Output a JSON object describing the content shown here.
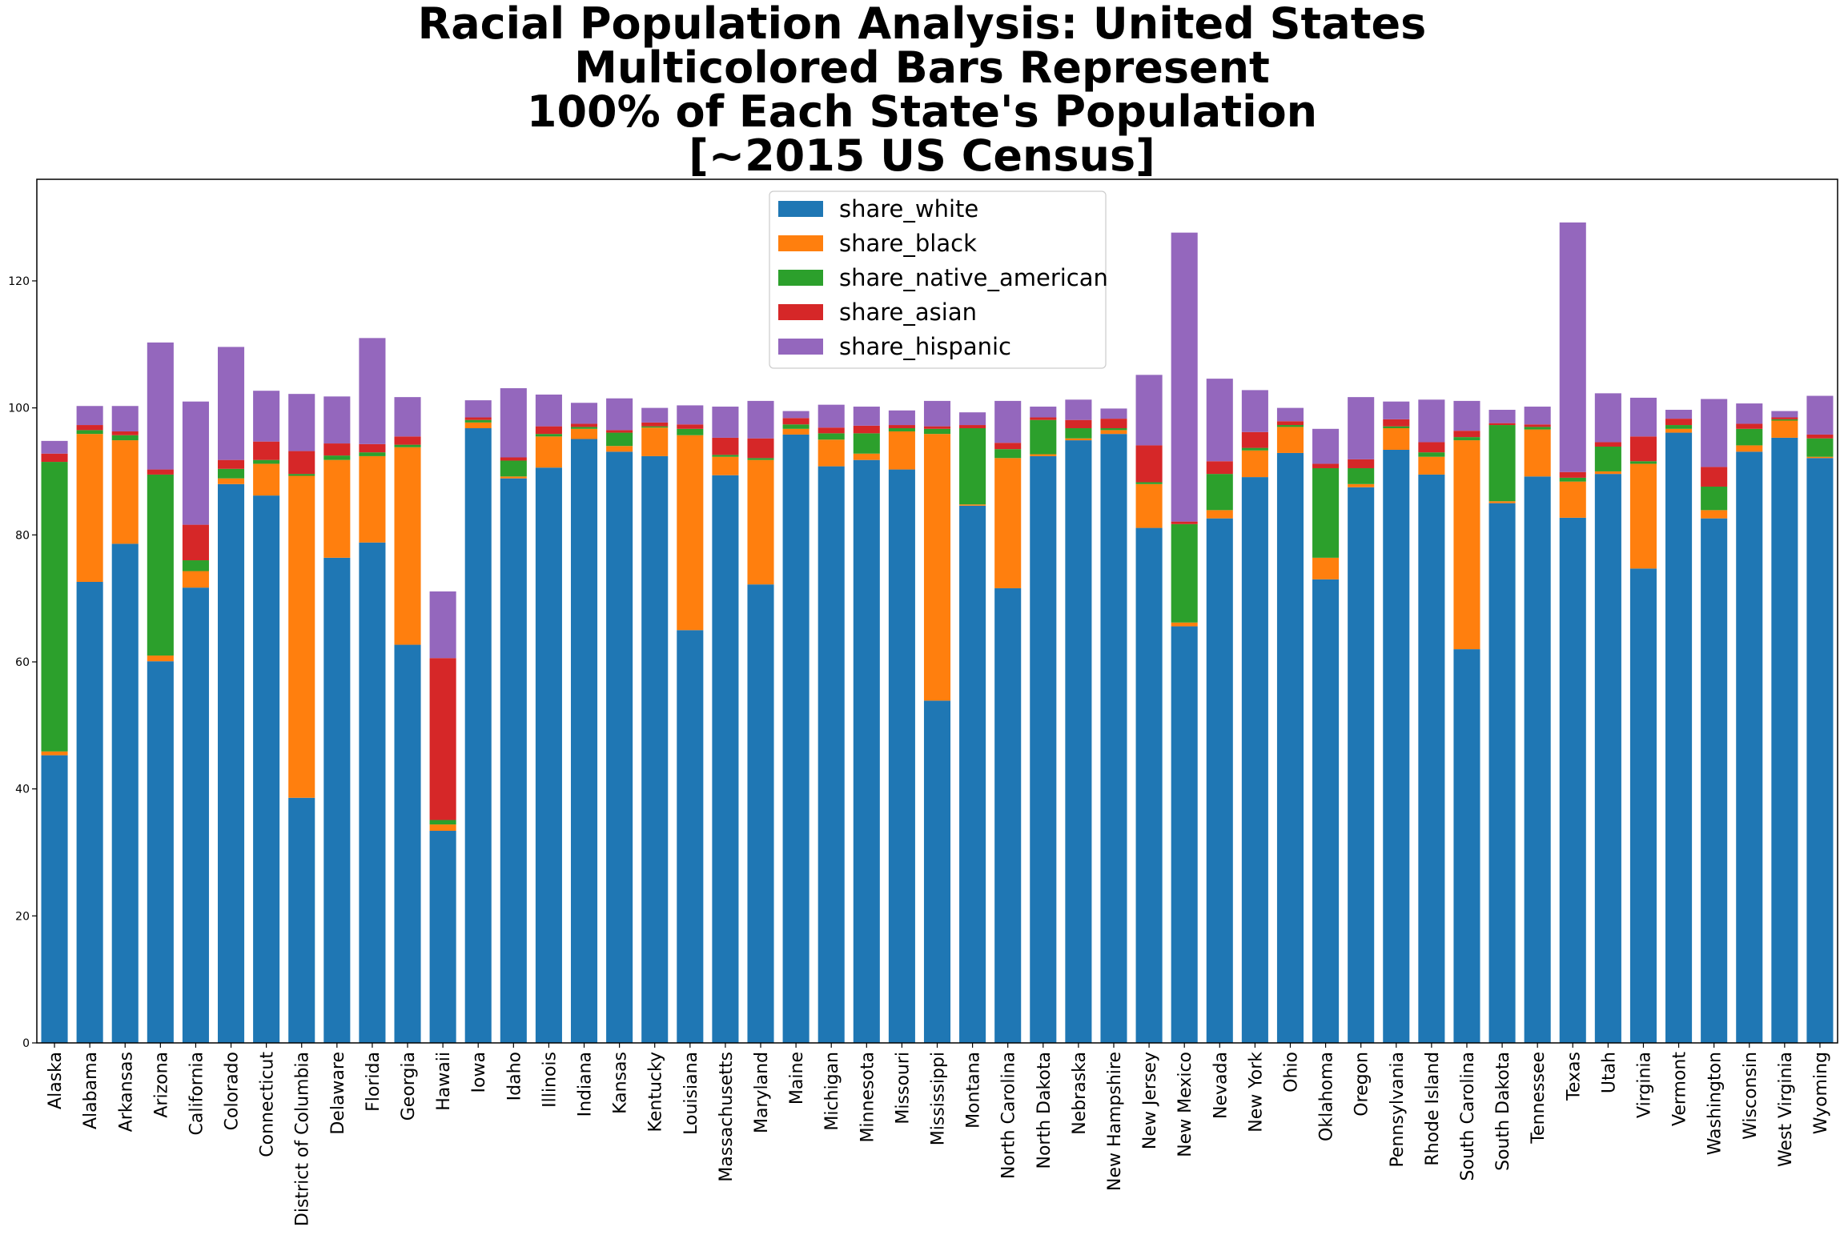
{
  "chart_data": {
    "type": "bar",
    "stacked": true,
    "title_lines": [
      "Racial Population Analysis: United States",
      "Multicolored Bars Represent",
      "100% of Each State's Population",
      "[~2015 US Census]"
    ],
    "xlabel": "",
    "ylabel": "",
    "ylim": [
      0,
      136
    ],
    "yticks": [
      0,
      20,
      40,
      60,
      80,
      100,
      120
    ],
    "grid": false,
    "legend_position": "top-center",
    "categories": [
      "Alaska",
      "Alabama",
      "Arkansas",
      "Arizona",
      "California",
      "Colorado",
      "Connecticut",
      "District of Columbia",
      "Delaware",
      "Florida",
      "Georgia",
      "Hawaii",
      "Iowa",
      "Idaho",
      "Illinois",
      "Indiana",
      "Kansas",
      "Kentucky",
      "Louisiana",
      "Massachusetts",
      "Maryland",
      "Maine",
      "Michigan",
      "Minnesota",
      "Missouri",
      "Mississippi",
      "Montana",
      "North Carolina",
      "North Dakota",
      "Nebraska",
      "New Hampshire",
      "New Jersey",
      "New Mexico",
      "Nevada",
      "New York",
      "Ohio",
      "Oklahoma",
      "Oregon",
      "Pennsylvania",
      "Rhode Island",
      "South Carolina",
      "South Dakota",
      "Tennessee",
      "Texas",
      "Utah",
      "Virginia",
      "Vermont",
      "Washington",
      "Wisconsin",
      "West Virginia",
      "Wyoming"
    ],
    "series": [
      {
        "name": "share_white",
        "color": "#1f77b4",
        "values": [
          45.3,
          72.6,
          78.6,
          60.1,
          71.7,
          88.0,
          86.2,
          38.6,
          76.4,
          78.8,
          62.7,
          33.4,
          96.8,
          88.9,
          90.6,
          95.1,
          93.1,
          92.4,
          65.0,
          89.4,
          72.2,
          95.8,
          90.8,
          91.8,
          90.3,
          53.9,
          84.6,
          71.6,
          92.4,
          94.9,
          95.9,
          81.1,
          65.6,
          82.6,
          89.1,
          92.9,
          73.0,
          87.5,
          93.4,
          89.5,
          62.0,
          85.0,
          89.2,
          82.7,
          89.6,
          74.7,
          96.1,
          82.6,
          93.1,
          95.3,
          92.1
        ]
      },
      {
        "name": "share_black",
        "color": "#ff7f0e",
        "values": [
          0.6,
          23.3,
          16.3,
          0.9,
          2.6,
          0.9,
          5.0,
          50.7,
          15.4,
          13.6,
          31.1,
          1.0,
          0.9,
          0.3,
          4.9,
          1.6,
          0.9,
          4.5,
          30.7,
          2.9,
          19.6,
          0.9,
          4.2,
          1.0,
          6.0,
          42.0,
          0.2,
          20.5,
          0.3,
          0.3,
          0.6,
          6.9,
          0.6,
          1.3,
          4.2,
          4.1,
          3.4,
          0.5,
          3.4,
          2.8,
          32.9,
          0.3,
          7.4,
          5.7,
          0.4,
          16.5,
          0.6,
          1.3,
          1.0,
          2.7,
          0.2
        ]
      },
      {
        "name": "share_native_american",
        "color": "#2ca02c",
        "values": [
          45.6,
          0.6,
          0.8,
          28.5,
          1.7,
          1.5,
          0.6,
          0.3,
          0.7,
          0.6,
          0.4,
          0.7,
          0.4,
          2.5,
          0.4,
          0.3,
          2.1,
          0.2,
          1.0,
          0.3,
          0.3,
          0.7,
          1.0,
          3.2,
          0.5,
          0.8,
          12.0,
          1.4,
          5.4,
          1.6,
          0.3,
          0.3,
          15.5,
          5.7,
          0.4,
          0.3,
          14.1,
          2.5,
          0.3,
          0.7,
          0.5,
          12.0,
          0.4,
          0.6,
          3.9,
          0.4,
          0.6,
          3.7,
          2.6,
          0.2,
          2.9
        ]
      },
      {
        "name": "share_asian",
        "color": "#d62728",
        "values": [
          1.3,
          0.8,
          0.6,
          0.8,
          5.6,
          1.4,
          2.9,
          3.6,
          1.9,
          1.3,
          1.3,
          25.5,
          0.4,
          0.5,
          1.2,
          0.5,
          0.4,
          0.6,
          0.7,
          2.7,
          3.1,
          1.0,
          0.9,
          1.2,
          0.5,
          0.4,
          0.5,
          1.0,
          0.4,
          1.3,
          1.5,
          5.8,
          0.4,
          2.0,
          2.5,
          0.6,
          0.7,
          1.4,
          1.1,
          1.6,
          1.0,
          0.3,
          0.4,
          0.9,
          0.7,
          3.9,
          1.0,
          3.1,
          0.8,
          0.3,
          0.6
        ]
      },
      {
        "name": "share_hispanic",
        "color": "#9467bd",
        "values": [
          2.0,
          3.0,
          4.0,
          20.0,
          19.4,
          17.8,
          8.0,
          9.0,
          7.4,
          16.7,
          6.2,
          10.5,
          2.7,
          10.9,
          5.0,
          3.3,
          5.0,
          2.3,
          3.0,
          4.9,
          5.9,
          1.1,
          3.6,
          3.0,
          2.3,
          4.0,
          2.0,
          6.6,
          1.7,
          3.2,
          1.6,
          11.1,
          45.5,
          13.0,
          6.6,
          2.1,
          5.5,
          9.8,
          2.8,
          6.7,
          4.7,
          2.1,
          2.8,
          39.3,
          7.7,
          6.1,
          1.4,
          10.7,
          3.2,
          1.0,
          6.1
        ]
      }
    ]
  }
}
